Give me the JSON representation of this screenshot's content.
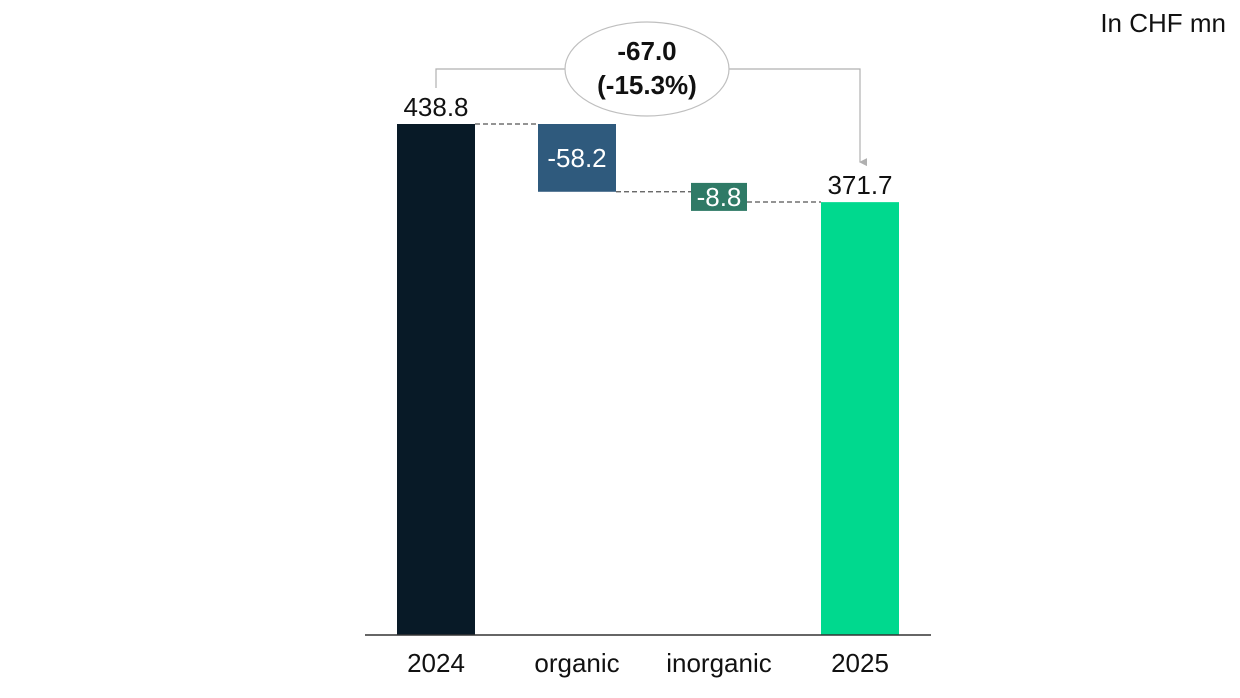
{
  "unit_label": "In CHF mn",
  "colors": {
    "start_bar": "#081a27",
    "organic_bar": "#2f5a7d",
    "inorganic_bar": "#2f7a66",
    "end_bar": "#00d98e",
    "axis": "#333333",
    "connector": "#555555",
    "bubble_border": "#bfbfbf",
    "arrow": "#b0b0b0"
  },
  "chart_data": {
    "type": "bar",
    "subtype": "waterfall",
    "categories": [
      "2024",
      "organic",
      "inorganic",
      "2025"
    ],
    "values": [
      438.8,
      -58.2,
      -8.8,
      371.7
    ],
    "value_labels": [
      "438.8",
      "-58.2",
      "-8.8",
      "371.7"
    ],
    "bar_kinds": [
      "total",
      "delta",
      "delta",
      "total"
    ],
    "total_change": {
      "value": "-67.0",
      "percent": "(-15.3%)"
    },
    "ylim": [
      0,
      438.8
    ],
    "grid": false,
    "legend": "none"
  }
}
